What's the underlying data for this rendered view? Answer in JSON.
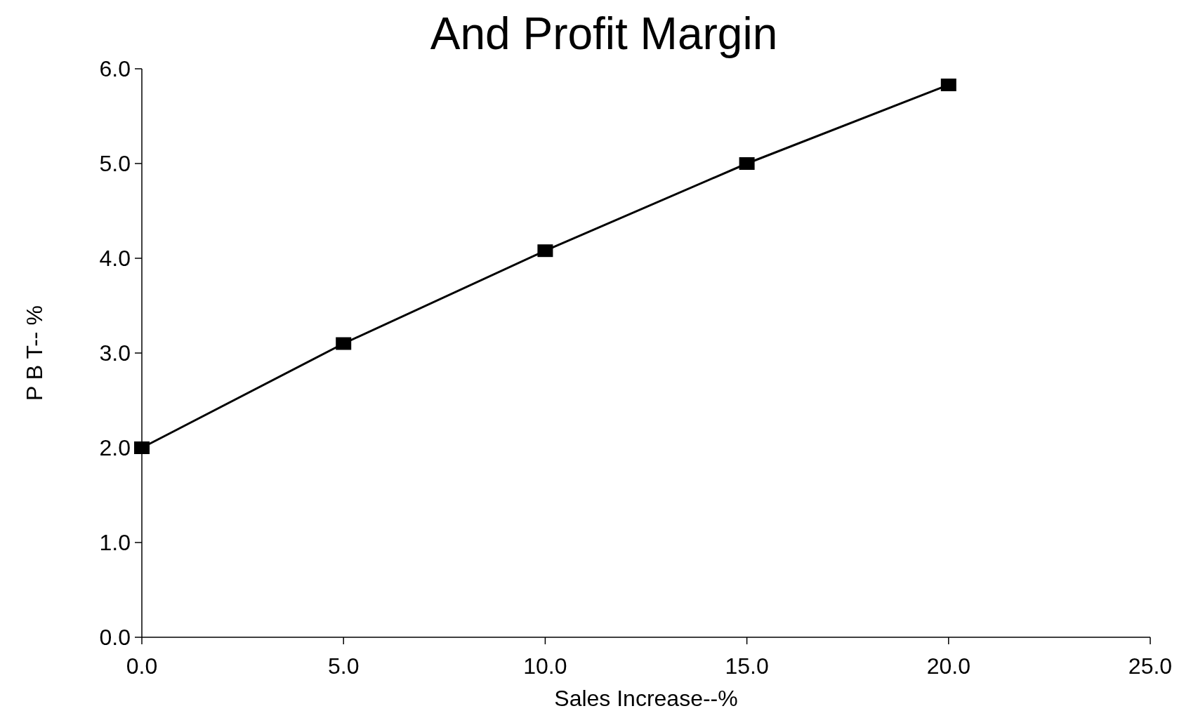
{
  "chart_data": {
    "type": "line",
    "title": "And Profit Margin",
    "xlabel": "Sales Increase--%",
    "ylabel": "P B T-- %",
    "x": [
      0,
      5,
      10,
      15,
      20
    ],
    "series": [
      {
        "color": "#000000",
        "values": [
          2.0,
          3.1,
          4.08,
          5.0,
          5.83
        ]
      }
    ],
    "xlim": [
      0,
      25
    ],
    "xticks": [
      {
        "value": 0,
        "label": "0.0"
      },
      {
        "value": 5,
        "label": "5.0"
      },
      {
        "value": 10,
        "label": "10.0"
      },
      {
        "value": 15,
        "label": "15.0"
      },
      {
        "value": 20,
        "label": "20.0"
      },
      {
        "value": 25,
        "label": "25.0"
      }
    ],
    "ylim": [
      0,
      6
    ],
    "yticks": [
      {
        "value": 0,
        "label": "0.0"
      },
      {
        "value": 1,
        "label": "1.0"
      },
      {
        "value": 2,
        "label": "2.0"
      },
      {
        "value": 3,
        "label": "3.0"
      },
      {
        "value": 4,
        "label": "4.0"
      },
      {
        "value": 5,
        "label": "5.0"
      },
      {
        "value": 6,
        "label": "6.0"
      }
    ],
    "marker": "square",
    "line_style": "solid",
    "grid": false
  }
}
